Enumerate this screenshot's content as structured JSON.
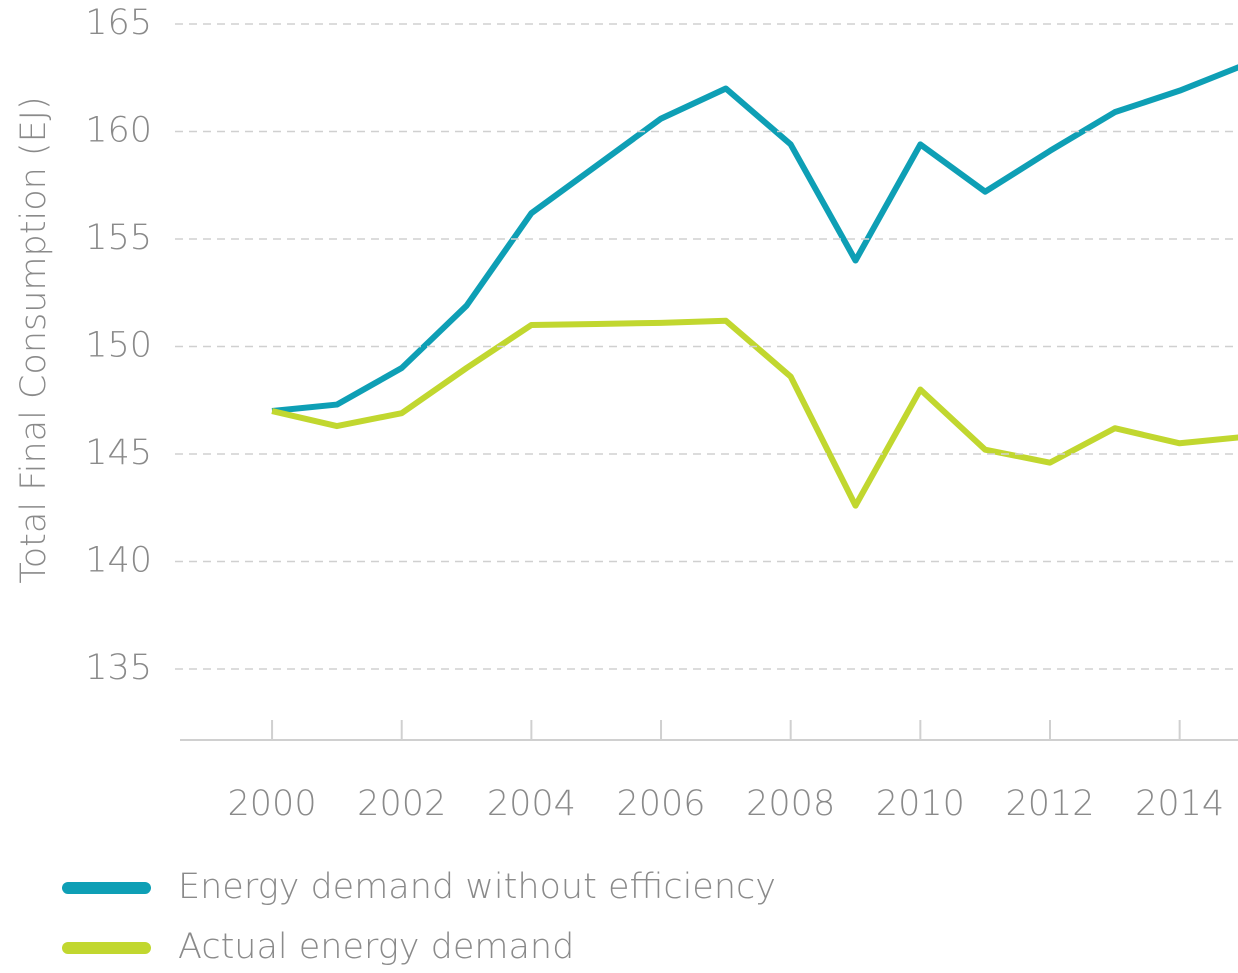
{
  "chart_data": {
    "type": "line",
    "y_label": "Total Final Consumption (EJ)",
    "x": [
      2000,
      2001,
      2002,
      2003,
      2004,
      2005,
      2006,
      2007,
      2008,
      2009,
      2010,
      2011,
      2012,
      2013,
      2014,
      2015
    ],
    "series": [
      {
        "name": "Energy demand without efficiency",
        "color": "#0e9fb5",
        "values": [
          147.0,
          147.3,
          149.0,
          151.9,
          156.2,
          158.4,
          160.6,
          162.0,
          159.4,
          154.0,
          159.4,
          157.2,
          159.1,
          160.9,
          161.9,
          163.1
        ]
      },
      {
        "name": "Actual energy demand",
        "color": "#c1d72f",
        "values": [
          147.0,
          146.3,
          146.9,
          149.0,
          151.0,
          151.05,
          151.1,
          151.2,
          148.6,
          142.6,
          148.0,
          145.2,
          144.6,
          146.2,
          145.5,
          145.8
        ]
      }
    ],
    "xlim": [
      1998.58,
      2014.9
    ],
    "xticks": [
      2000,
      2002,
      2004,
      2006,
      2008,
      2010,
      2012,
      2014
    ],
    "ylim": [
      131.7,
      165
    ],
    "yticks": [
      135,
      140,
      145,
      150,
      155,
      160,
      165
    ],
    "grid": true
  }
}
